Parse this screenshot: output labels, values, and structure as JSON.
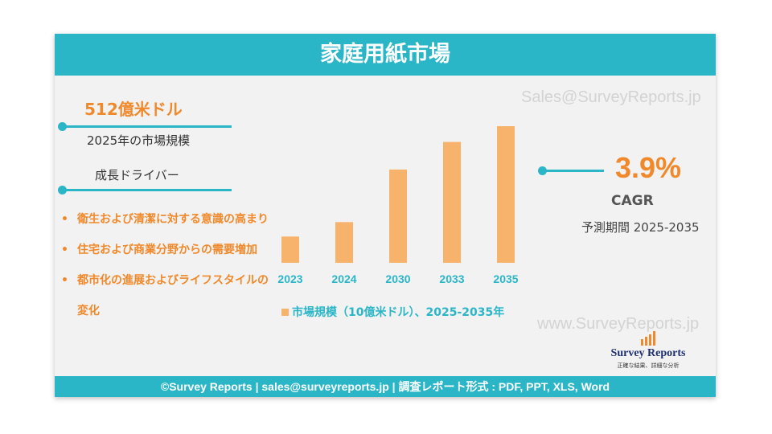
{
  "header": {
    "title": "家庭用紙市場"
  },
  "watermarks": {
    "top": "Sales@SurveyReports.jp",
    "bottom": "www.SurveyReports.jp"
  },
  "market": {
    "value": "512億米ドル",
    "label": "2025年の市場規模"
  },
  "drivers": {
    "title": "成長ドライバー",
    "items": [
      "衛生および清潔に対する意識の高まり",
      "住宅および商業分野からの需要増加",
      "都市化の進展およびライフスタイルの変化"
    ]
  },
  "chart_data": {
    "type": "bar",
    "categories": [
      "2023",
      "2024",
      "2030",
      "2033",
      "2035"
    ],
    "values": [
      20,
      31,
      71,
      92,
      104
    ],
    "legend": "市場規模（10億米ドル）、2025-2035年",
    "colors": {
      "bar": "#f7b26b",
      "labels": "#2bb6c8"
    }
  },
  "cagr": {
    "value": "3.9%",
    "label": "CAGR",
    "period": "予測期間 2025-2035"
  },
  "logo": {
    "name": "Survey Reports",
    "tagline": "正確な結果、詳細な分析"
  },
  "footer": {
    "text": "©Survey Reports | sales@surveyreports.jp |  調査レポート形式 : PDF, PPT, XLS, Word"
  },
  "colors": {
    "accent": "#2bb6c8",
    "orange": "#f0892b"
  }
}
